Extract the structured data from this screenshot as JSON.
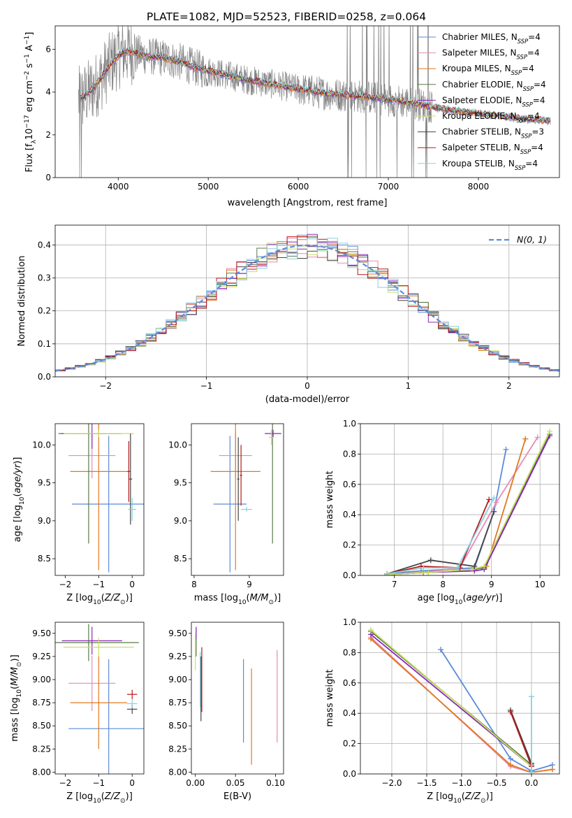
{
  "figure": {
    "title": "PLATE=1082, MJD=52523, FIBERID=0258, z=0.064"
  },
  "models": [
    {
      "name": "Chabrier MILES",
      "nssp": "4",
      "color": "#5b8bd8"
    },
    {
      "name": "Salpeter MILES",
      "nssp": "4",
      "color": "#e58bb7"
    },
    {
      "name": "Kroupa MILES",
      "nssp": "4",
      "color": "#e07820"
    },
    {
      "name": "Chabrier ELODIE",
      "nssp": "4",
      "color": "#5a7a4a"
    },
    {
      "name": "Salpeter ELODIE",
      "nssp": "4",
      "color": "#8a2ab8"
    },
    {
      "name": "Kroupa ELODIE",
      "nssp": "4",
      "color": "#c8e060"
    },
    {
      "name": "Chabrier STELIB",
      "nssp": "3",
      "color": "#444444"
    },
    {
      "name": "Salpeter STELIB",
      "nssp": "4",
      "color": "#b81818"
    },
    {
      "name": "Kroupa STELIB",
      "nssp": "4",
      "color": "#88d0e0"
    }
  ],
  "chart_data": [
    {
      "id": "spectrum",
      "type": "line",
      "title": "PLATE=1082, MJD=52523, FIBERID=0258, z=0.064",
      "xlabel": "wavelength [Angstrom, rest frame]",
      "ylabel": "Flux [f_λ10^-17 erg cm^-2 s^-1 A^-1]",
      "xlim": [
        3300,
        8900
      ],
      "ylim": [
        0,
        7.1
      ],
      "xticks": [
        4000,
        5000,
        6000,
        7000,
        8000
      ],
      "yticks": [
        0,
        2,
        4,
        6
      ],
      "grid": false,
      "legend_position": "upper-right",
      "data_color": "#808080",
      "continuum": {
        "x": [
          3550,
          3650,
          3750,
          3850,
          3950,
          4050,
          4150,
          4300,
          4500,
          4700,
          4850,
          5000,
          5200,
          5400,
          5600,
          5800,
          6000,
          6200,
          6400,
          6550,
          6700,
          6900,
          7100,
          7300,
          7500,
          7700,
          7900,
          8100,
          8300,
          8500,
          8800
        ],
        "y": [
          3.6,
          3.9,
          4.3,
          4.9,
          5.5,
          5.85,
          5.9,
          5.7,
          5.6,
          5.4,
          5.15,
          5.0,
          4.8,
          4.6,
          4.45,
          4.3,
          4.15,
          4.0,
          3.9,
          3.85,
          3.8,
          3.7,
          3.6,
          3.45,
          3.3,
          3.15,
          3.05,
          2.95,
          2.85,
          2.75,
          2.65
        ]
      }
    },
    {
      "id": "residual-histogram",
      "type": "histogram",
      "xlabel": "(data-model)/error",
      "ylabel": "Normed distribution",
      "xlim": [
        -2.5,
        2.5
      ],
      "ylim": [
        0,
        0.46
      ],
      "xticks": [
        -2,
        -1,
        0,
        1,
        2
      ],
      "yticks": [
        0.0,
        0.1,
        0.2,
        0.3,
        0.4
      ],
      "grid": true,
      "legend": "N(0,1)",
      "legend_position": "upper-right",
      "normal_curve_color": "#5b8bd8",
      "bin_width": 0.1,
      "bins_start": -2.5
    },
    {
      "id": "age-vs-z",
      "type": "errorbar",
      "xlabel": "Z [log10(Z/Z⊙)]",
      "ylabel": "age  [log10(age/yr)]",
      "xlim": [
        -2.3,
        0.35
      ],
      "ylim": [
        8.28,
        10.28
      ],
      "xticks": [
        -2,
        -1,
        0
      ],
      "yticks": [
        8.5,
        9.0,
        9.5,
        10.0
      ],
      "points": [
        {
          "model": 0,
          "x": -0.7,
          "xerr": 1.1,
          "y": 9.22,
          "yerr": 0.9
        },
        {
          "model": 1,
          "x": -1.2,
          "xerr": 0.7,
          "y": 9.86,
          "yerr": 0.3
        },
        {
          "model": 2,
          "x": -1.0,
          "xerr": 0.85,
          "y": 9.65,
          "yerr": 1.3
        },
        {
          "model": 3,
          "x": -1.3,
          "xerr": 0.9,
          "y": 10.15,
          "yerr": 1.45
        },
        {
          "model": 4,
          "x": -1.2,
          "xerr": 0.9,
          "y": 10.15,
          "yerr": 0.2
        },
        {
          "model": 5,
          "x": -1.0,
          "xerr": 1.05,
          "y": 10.15,
          "yerr": 0.05
        },
        {
          "model": 6,
          "x": -0.05,
          "xerr": 0.05,
          "y": 9.55,
          "yerr": 0.6
        },
        {
          "model": 7,
          "x": -0.1,
          "xerr": 0.05,
          "y": 9.65,
          "yerr": 0.4
        },
        {
          "model": 8,
          "x": 0.0,
          "xerr": 0.12,
          "y": 9.15,
          "yerr": 0.15
        }
      ]
    },
    {
      "id": "age-vs-mass",
      "type": "errorbar",
      "xlabel": "mass [log10(M/M⊙)]",
      "ylabel": "",
      "xlim": [
        7.95,
        9.62
      ],
      "ylim": [
        8.28,
        10.28
      ],
      "xticks": [
        8,
        9
      ],
      "yticks": [
        8.5,
        9.0,
        9.5,
        10.0
      ],
      "points": [
        {
          "model": 0,
          "x": 8.65,
          "xerr": 0.3,
          "y": 9.22,
          "yerr": 0.9
        },
        {
          "model": 1,
          "x": 8.75,
          "xerr": 0.3,
          "y": 9.86,
          "yerr": 0.3
        },
        {
          "model": 2,
          "x": 8.75,
          "xerr": 0.45,
          "y": 9.65,
          "yerr": 1.3
        },
        {
          "model": 3,
          "x": 9.42,
          "xerr": 0.05,
          "y": 10.15,
          "yerr": 1.45
        },
        {
          "model": 4,
          "x": 9.43,
          "xerr": 0.15,
          "y": 10.15,
          "yerr": 0.05
        },
        {
          "model": 5,
          "x": 9.4,
          "xerr": 0.05,
          "y": 10.1,
          "yerr": 0.1
        },
        {
          "model": 6,
          "x": 8.8,
          "xerr": 0.02,
          "y": 9.55,
          "yerr": 0.55
        },
        {
          "model": 7,
          "x": 8.85,
          "xerr": 0.02,
          "y": 9.6,
          "yerr": 0.4
        },
        {
          "model": 8,
          "x": 8.95,
          "xerr": 0.1,
          "y": 9.15,
          "yerr": 0.03
        }
      ]
    },
    {
      "id": "weight-vs-age",
      "type": "line",
      "xlabel": "age  [log10(age/yr)]",
      "ylabel": "mass weight",
      "xlim": [
        6.3,
        10.4
      ],
      "ylim": [
        0,
        1.0
      ],
      "xticks": [
        7,
        8,
        9,
        10
      ],
      "yticks": [
        0.0,
        0.2,
        0.4,
        0.6,
        0.8,
        1.0
      ],
      "grid": true,
      "series": [
        {
          "model": 0,
          "x": [
            6.85,
            7.55,
            8.65,
            9.05,
            9.3
          ],
          "y": [
            0.01,
            0.03,
            0.05,
            0.42,
            0.83
          ]
        },
        {
          "model": 1,
          "x": [
            6.85,
            7.6,
            8.35,
            9.1,
            9.95
          ],
          "y": [
            0.005,
            0.02,
            0.05,
            0.48,
            0.91
          ]
        },
        {
          "model": 2,
          "x": [
            6.85,
            7.6,
            8.65,
            8.9,
            9.7
          ],
          "y": [
            0.005,
            0.02,
            0.04,
            0.06,
            0.9
          ]
        },
        {
          "model": 3,
          "x": [
            6.85,
            7.7,
            8.6,
            8.85,
            10.2
          ],
          "y": [
            0.005,
            0.02,
            0.04,
            0.05,
            0.93
          ]
        },
        {
          "model": 4,
          "x": [
            6.85,
            7.7,
            8.65,
            8.85,
            10.2
          ],
          "y": [
            0.005,
            0.02,
            0.03,
            0.04,
            0.92
          ]
        },
        {
          "model": 5,
          "x": [
            6.85,
            7.7,
            8.6,
            8.85,
            10.2
          ],
          "y": [
            0.005,
            0.02,
            0.04,
            0.06,
            0.95
          ]
        },
        {
          "model": 6,
          "x": [
            6.85,
            7.75,
            8.65,
            9.05
          ],
          "y": [
            0.01,
            0.1,
            0.06,
            0.42
          ]
        },
        {
          "model": 7,
          "x": [
            6.85,
            7.55,
            8.35,
            8.95
          ],
          "y": [
            0.01,
            0.06,
            0.05,
            0.5
          ]
        },
        {
          "model": 8,
          "x": [
            6.85,
            7.6,
            8.3,
            9.05
          ],
          "y": [
            0.01,
            0.05,
            0.05,
            0.51
          ]
        }
      ]
    },
    {
      "id": "mass-vs-z",
      "type": "errorbar",
      "xlabel": "Z [log10(Z/Z⊙)]",
      "ylabel": "mass [log10(M/M⊙)]",
      "xlim": [
        -2.3,
        0.35
      ],
      "ylim": [
        7.98,
        9.62
      ],
      "xticks": [
        -2,
        -1,
        0
      ],
      "yticks": [
        8.0,
        8.25,
        8.5,
        8.75,
        9.0,
        9.25,
        9.5
      ],
      "points": [
        {
          "model": 0,
          "x": -0.7,
          "xerr": 1.2,
          "y": 8.47,
          "yerr": 0.75
        },
        {
          "model": 1,
          "x": -1.2,
          "xerr": 0.7,
          "y": 8.96,
          "yerr": 0.3
        },
        {
          "model": 2,
          "x": -1.0,
          "xerr": 0.85,
          "y": 8.75,
          "yerr": 0.5
        },
        {
          "model": 3,
          "x": -1.3,
          "xerr": 1.5,
          "y": 9.4,
          "yerr": 0.2
        },
        {
          "model": 4,
          "x": -1.2,
          "xerr": 0.9,
          "y": 9.42,
          "yerr": 0.15
        },
        {
          "model": 5,
          "x": -1.0,
          "xerr": 1.05,
          "y": 9.35,
          "yerr": 0.1
        },
        {
          "model": 6,
          "x": 0.0,
          "xerr": 0.15,
          "y": 8.68,
          "yerr": 0.05
        },
        {
          "model": 7,
          "x": 0.0,
          "xerr": 0.15,
          "y": 8.84,
          "yerr": 0.05
        },
        {
          "model": 8,
          "x": 0.0,
          "xerr": 0.15,
          "y": 8.74,
          "yerr": 0.05
        }
      ]
    },
    {
      "id": "mass-vs-ebv",
      "type": "errorbar",
      "xlabel": "E(B-V)",
      "ylabel": "",
      "xlim": [
        -0.005,
        0.11
      ],
      "ylim": [
        7.98,
        9.62
      ],
      "xticks": [
        0.0,
        0.05,
        0.1
      ],
      "yticks": [
        8.0,
        8.25,
        8.5,
        8.75,
        9.0,
        9.25,
        9.5
      ],
      "points": [
        {
          "model": 0,
          "x": 0.06,
          "xerr": 0,
          "y": 8.77,
          "yerr": 0.45
        },
        {
          "model": 1,
          "x": 0.102,
          "xerr": 0,
          "y": 8.82,
          "yerr": 0.5
        },
        {
          "model": 2,
          "x": 0.07,
          "xerr": 0,
          "y": 8.6,
          "yerr": 0.52
        },
        {
          "model": 3,
          "x": 0.001,
          "xerr": 0,
          "y": 9.4,
          "yerr": 0.15
        },
        {
          "model": 4,
          "x": 0.001,
          "xerr": 0,
          "y": 9.5,
          "yerr": 0.07
        },
        {
          "model": 5,
          "x": 0.0,
          "xerr": 0,
          "y": 9.3,
          "yerr": 0.2
        },
        {
          "model": 6,
          "x": 0.007,
          "xerr": 0,
          "y": 8.9,
          "yerr": 0.35
        },
        {
          "model": 7,
          "x": 0.008,
          "xerr": 0,
          "y": 9.0,
          "yerr": 0.35
        },
        {
          "model": 8,
          "x": 0.006,
          "xerr": 0,
          "y": 9.0,
          "yerr": 0.3
        }
      ]
    },
    {
      "id": "weight-vs-z",
      "type": "line",
      "xlabel": "Z [log10(Z/Z⊙)]",
      "ylabel": "mass weight",
      "xlim": [
        -2.45,
        0.4
      ],
      "ylim": [
        0,
        1.0
      ],
      "xticks": [
        -2.0,
        -1.5,
        -1.0,
        -0.5,
        0.0
      ],
      "yticks": [
        0.0,
        0.2,
        0.4,
        0.6,
        0.8,
        1.0
      ],
      "grid": true,
      "series": [
        {
          "model": 0,
          "x": [
            -1.3,
            -0.3,
            0.0,
            0.3
          ],
          "y": [
            0.82,
            0.1,
            0.02,
            0.06
          ]
        },
        {
          "model": 1,
          "x": [
            -2.3,
            -0.3,
            0.0,
            0.3
          ],
          "y": [
            0.9,
            0.05,
            0.01,
            0.03
          ]
        },
        {
          "model": 2,
          "x": [
            -2.3,
            -0.3,
            0.0,
            0.3
          ],
          "y": [
            0.89,
            0.06,
            0.01,
            0.03
          ]
        },
        {
          "model": 3,
          "x": [
            -2.3,
            0.0
          ],
          "y": [
            0.94,
            0.06
          ]
        },
        {
          "model": 4,
          "x": [
            -2.3,
            0.0
          ],
          "y": [
            0.92,
            0.05
          ]
        },
        {
          "model": 5,
          "x": [
            -2.3,
            0.0
          ],
          "y": [
            0.95,
            0.05
          ]
        },
        {
          "model": 6,
          "x": [
            -0.3,
            0.0
          ],
          "y": [
            0.42,
            0.07
          ]
        },
        {
          "model": 7,
          "x": [
            -0.3,
            0.0
          ],
          "y": [
            0.41,
            0.05
          ]
        },
        {
          "model": 8,
          "x": [
            0.0,
            0.0
          ],
          "y": [
            0.51,
            0.01
          ]
        }
      ]
    }
  ]
}
